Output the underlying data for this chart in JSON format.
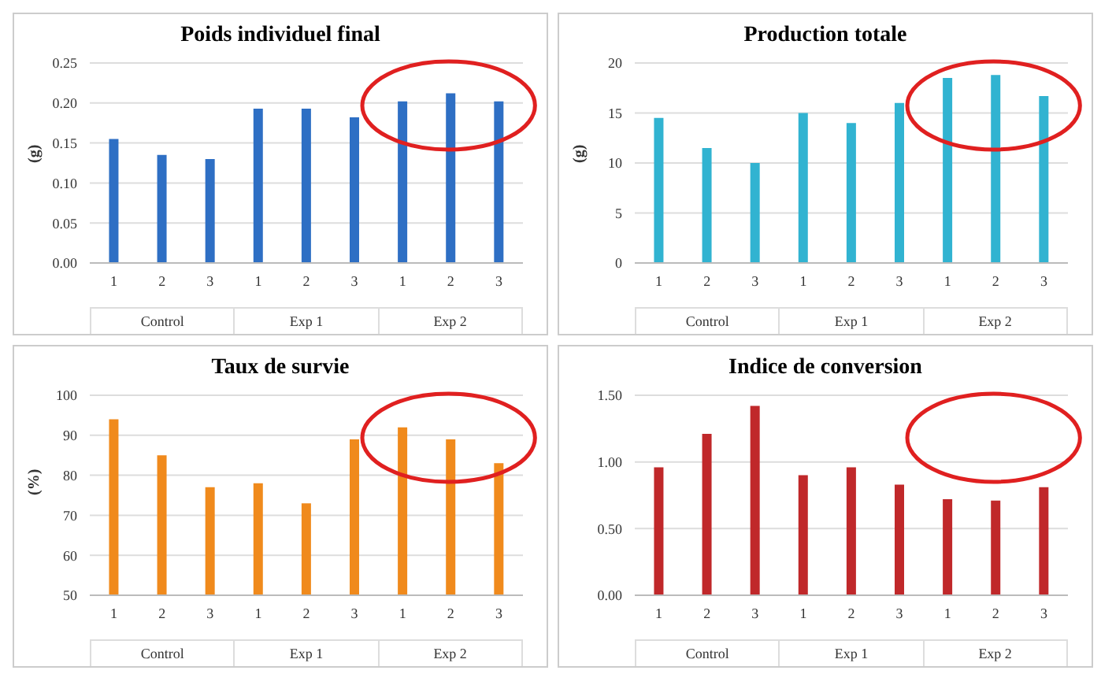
{
  "chart_data": [
    {
      "type": "bar",
      "title": "Poids individuel final",
      "ylabel": "(g)",
      "categories": [
        "1",
        "2",
        "3",
        "1",
        "2",
        "3",
        "1",
        "2",
        "3"
      ],
      "annotations": [
        "Control",
        "Exp 1",
        "Exp 2"
      ],
      "values": [
        0.155,
        0.135,
        0.13,
        0.193,
        0.193,
        0.182,
        0.202,
        0.212,
        0.202
      ],
      "color": "#2e6fc4",
      "ylim": [
        0,
        0.25
      ],
      "yticks": [
        {
          "value": 0,
          "label": "0.00"
        },
        {
          "value": 0.05,
          "label": "0.05"
        },
        {
          "value": 0.1,
          "label": "0.10"
        },
        {
          "value": 0.15,
          "label": "0.15"
        },
        {
          "value": 0.2,
          "label": "0.20"
        },
        {
          "value": 0.25,
          "label": "0.25"
        }
      ],
      "grid": "y",
      "legend": false
    },
    {
      "type": "bar",
      "title": "Production totale",
      "ylabel": "(g)",
      "categories": [
        "1",
        "2",
        "3",
        "1",
        "2",
        "3",
        "1",
        "2",
        "3"
      ],
      "annotations": [
        "Control",
        "Exp 1",
        "Exp 2"
      ],
      "values": [
        14.5,
        11.5,
        10,
        15,
        14,
        16,
        18.5,
        18.8,
        16.7
      ],
      "color": "#31b3d1",
      "ylim": [
        0,
        20
      ],
      "yticks": [
        0,
        5,
        10,
        15,
        20
      ],
      "grid": "y",
      "legend": false
    },
    {
      "type": "bar",
      "title": "Taux de survie",
      "ylabel": "(%)",
      "categories": [
        "1",
        "2",
        "3",
        "1",
        "2",
        "3",
        "1",
        "2",
        "3"
      ],
      "annotations": [
        "Control",
        "Exp 1",
        "Exp 2"
      ],
      "values": [
        94,
        85,
        77,
        78,
        73,
        89,
        92,
        89,
        83
      ],
      "color": "#f08a1c",
      "ylim": [
        50,
        100
      ],
      "yticks": [
        50,
        60,
        70,
        80,
        90,
        100
      ],
      "grid": "y",
      "legend": false
    },
    {
      "type": "bar",
      "title": "Indice de conversion",
      "categories": [
        "1",
        "2",
        "3",
        "1",
        "2",
        "3",
        "1",
        "2",
        "3"
      ],
      "annotations": [
        "Control",
        "Exp 1",
        "Exp 2"
      ],
      "values": [
        0.96,
        1.21,
        1.42,
        0.9,
        0.96,
        0.83,
        0.72,
        0.71,
        0.81
      ],
      "color": "#c0282a",
      "ylim": [
        0,
        1.5
      ],
      "yticks": [
        {
          "value": 0,
          "label": "0.00"
        },
        {
          "value": 0.5,
          "label": "0.50"
        },
        {
          "value": 1,
          "label": "1.00"
        },
        {
          "value": 1.5,
          "label": "1.50"
        }
      ],
      "grid": "y",
      "legend": false
    }
  ]
}
